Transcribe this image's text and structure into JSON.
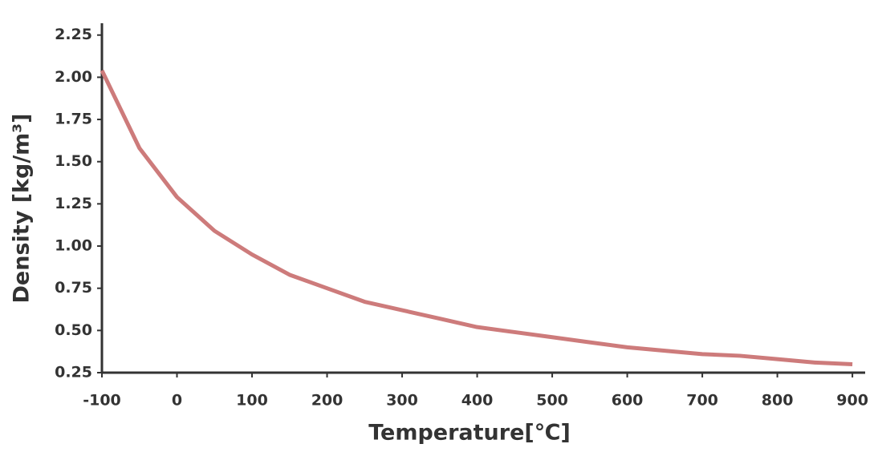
{
  "chart_data": {
    "type": "line",
    "x_label": "Temperature[℃]",
    "y_label": "Density [kg/m³]",
    "x": [
      -100,
      -50,
      0,
      50,
      100,
      150,
      200,
      250,
      300,
      350,
      400,
      450,
      500,
      550,
      600,
      650,
      700,
      750,
      800,
      850,
      900
    ],
    "series": [
      {
        "color": "#cd7b7b",
        "values": [
          2.04,
          1.58,
          1.29,
          1.09,
          0.95,
          0.83,
          0.75,
          0.67,
          0.62,
          0.57,
          0.52,
          0.49,
          0.46,
          0.43,
          0.4,
          0.38,
          0.36,
          0.35,
          0.33,
          0.31,
          0.3
        ]
      }
    ],
    "xlim": [
      -100,
      917
    ],
    "ylim": [
      0.25,
      2.32
    ],
    "xticks": [
      -100,
      0,
      100,
      200,
      300,
      400,
      500,
      600,
      700,
      800,
      900
    ],
    "yticks": [
      0.25,
      {
        "value": 0.5,
        "label": "0.50"
      },
      0.75,
      {
        "value": 1,
        "label": "1.00"
      },
      1.25,
      {
        "value": 1.5,
        "label": "1.50"
      },
      1.75,
      {
        "value": 2,
        "label": "2.00"
      },
      2.25
    ],
    "grid": false
  }
}
